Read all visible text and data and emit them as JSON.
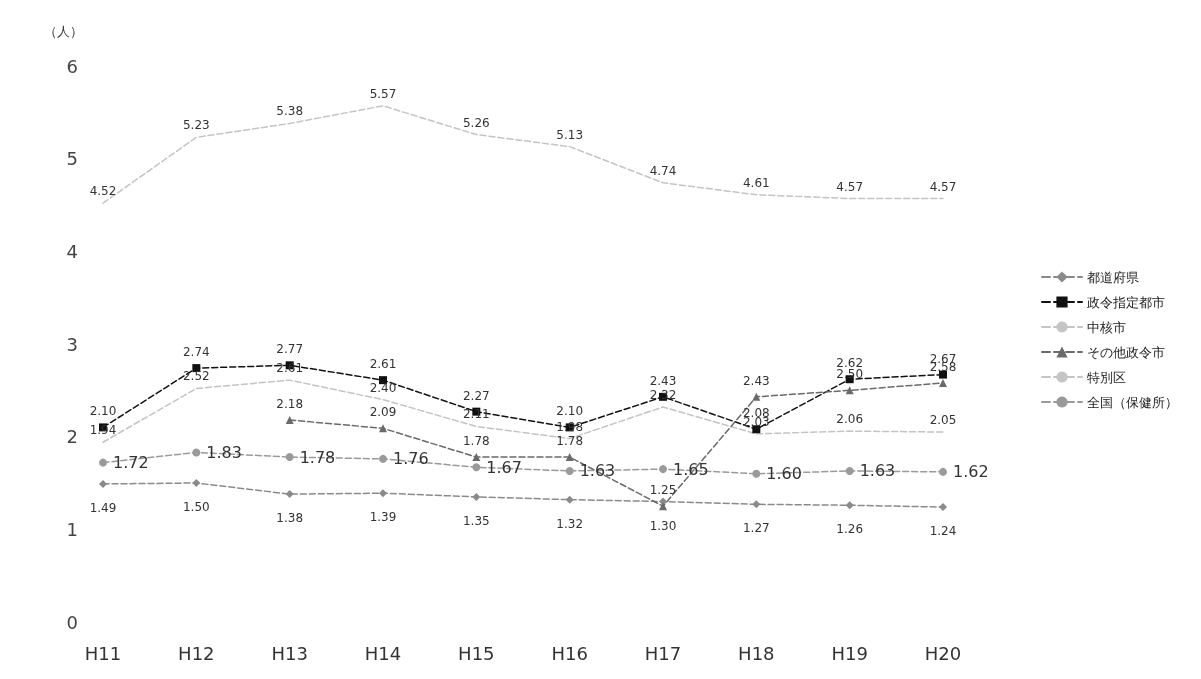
{
  "chart_data": {
    "type": "line",
    "ylabel": "（人）",
    "categories": [
      "H11",
      "H12",
      "H13",
      "H14",
      "H15",
      "H16",
      "H17",
      "H18",
      "H19",
      "H20"
    ],
    "ylim": [
      0,
      6
    ],
    "yticks": [
      0,
      1,
      2,
      3,
      4,
      5,
      6
    ],
    "grid": false,
    "legend": "right",
    "line_style": "dashed",
    "series": [
      {
        "name": "都道府県",
        "color": "#8a8a8a",
        "marker": "diamond",
        "values": [
          1.49,
          1.5,
          1.38,
          1.39,
          1.35,
          1.32,
          1.3,
          1.27,
          1.26,
          1.24
        ],
        "value_labels": [
          "1.49",
          "1.50",
          "1.38",
          "1.39",
          "1.35",
          "1.32",
          "1.30",
          "1.27",
          "1.26",
          "1.24"
        ]
      },
      {
        "name": "政令指定都市",
        "color": "#111111",
        "marker": "square",
        "values": [
          2.1,
          2.74,
          2.77,
          2.61,
          2.27,
          2.1,
          2.43,
          2.08,
          2.62,
          2.67
        ],
        "value_labels": [
          "2.10",
          "2.74",
          "2.77",
          "2.61",
          "2.27",
          "2.10",
          "2.43",
          "2.08",
          "2.62",
          "2.67"
        ]
      },
      {
        "name": "中核市",
        "color": "#c4c4c4",
        "marker": "none",
        "values": [
          1.94,
          2.52,
          2.61,
          2.4,
          2.11,
          1.98,
          2.32,
          2.03,
          2.06,
          2.05
        ],
        "value_labels": [
          "1.94",
          "2.52",
          "2.61",
          "2.40",
          "2.11",
          "1.98",
          "2.32",
          "2.03",
          "2.06",
          "2.05"
        ]
      },
      {
        "name": "その他政令市",
        "color": "#6a6a6a",
        "marker": "triangle",
        "values": [
          null,
          null,
          2.18,
          2.09,
          1.78,
          1.78,
          1.25,
          2.43,
          2.5,
          2.58
        ],
        "value_labels": [
          null,
          null,
          "2.18",
          "2.09",
          "1.78",
          "1.78",
          "1.25",
          "2.43",
          "2.50",
          "2.58"
        ]
      },
      {
        "name": "特別区",
        "color": "#c4c4c4",
        "marker": "none",
        "values": [
          4.52,
          5.23,
          5.38,
          5.57,
          5.26,
          5.13,
          4.74,
          4.61,
          4.57,
          4.57
        ],
        "value_labels": [
          "4.52",
          "5.23",
          "5.38",
          "5.57",
          "5.26",
          "5.13",
          "4.74",
          "4.61",
          "4.57",
          "4.57"
        ]
      },
      {
        "name": "全国（保健所）",
        "color": "#9a9a9a",
        "marker": "circle",
        "values": [
          1.72,
          1.83,
          1.78,
          1.76,
          1.67,
          1.63,
          1.65,
          1.6,
          1.63,
          1.62
        ],
        "value_labels": [
          "1.72",
          "1.83",
          "1.78",
          "1.76",
          "1.67",
          "1.63",
          "1.65",
          "1.60",
          "1.63",
          "1.62"
        ]
      }
    ]
  }
}
